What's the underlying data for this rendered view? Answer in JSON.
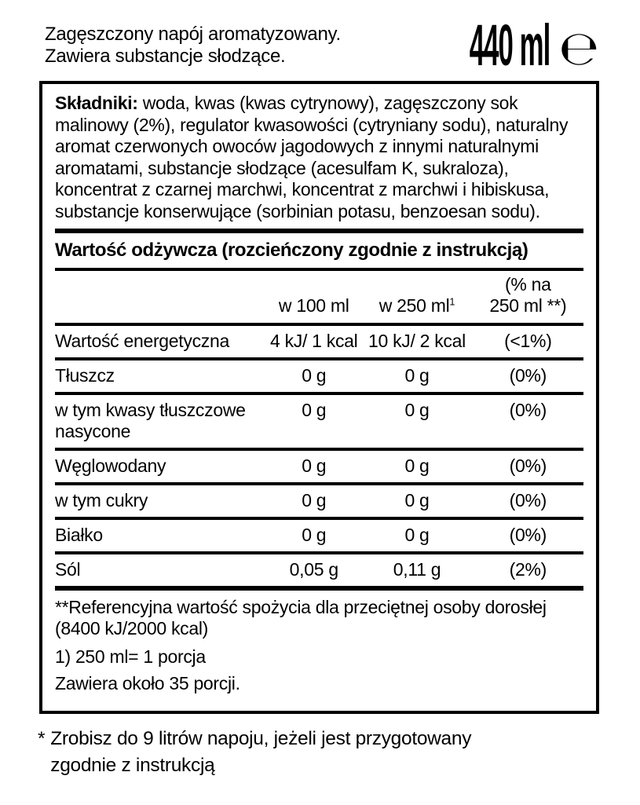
{
  "header": {
    "description_line1": "Zagęszczony napój aromatyzowany.",
    "description_line2": "Zawiera substancje słodzące.",
    "volume": "440 ml",
    "estimated_sign": "℮"
  },
  "ingredients": {
    "label": "Składniki:",
    "text": "woda, kwas (kwas cytrynowy), zagęszczony sok malinowy (2%), regulator kwasowości (cytryniany sodu), naturalny aromat czerwonych owoców jagodowych z innymi naturalnymi aromatami, substancje słodzące (acesulfam K, sukraloza), koncentrat z czarnej marchwi, koncentrat z marchwi i hibiskusa, substancje konserwujące (sorbinian potasu, benzoesan sodu)."
  },
  "nutrition": {
    "title": "Wartość odżywcza (rozcieńczony zgodnie z instrukcją)",
    "columns": {
      "per100": "w 100 ml",
      "per250": "w 250 ml",
      "per250_sup": "1",
      "percent_line1": "(% na",
      "percent_line2": "250 ml **)"
    },
    "rows": [
      {
        "label": "Wartość energetyczna",
        "per100": "4 kJ/ 1 kcal",
        "per250": "10 kJ/ 2 kcal",
        "percent": "(<1%)"
      },
      {
        "label": "Tłuszcz",
        "per100": "0 g",
        "per250": "0 g",
        "percent": "(0%)"
      },
      {
        "label": "w tym kwasy tłuszczowe nasycone",
        "per100": "0 g",
        "per250": "0 g",
        "percent": "(0%)"
      },
      {
        "label": "Węglowodany",
        "per100": "0 g",
        "per250": "0 g",
        "percent": "(0%)"
      },
      {
        "label": "w tym cukry",
        "per100": "0 g",
        "per250": "0 g",
        "percent": "(0%)"
      },
      {
        "label": "Białko",
        "per100": "0 g",
        "per250": "0 g",
        "percent": "(0%)"
      },
      {
        "label": "Sól",
        "per100": "0,05 g",
        "per250": "0,11 g",
        "percent": "(2%)"
      }
    ]
  },
  "footnotes": {
    "reference_line1": "**Referencyjna wartość spożycia dla przeciętnej osoby dorosłej",
    "reference_line2": "(8400 kJ/2000 kcal)",
    "portion": "1) 250 ml= 1 porcja",
    "portions_total": "Zawiera około 35 porcji."
  },
  "bottom_note": {
    "marker": "*",
    "line1": "Zrobisz do 9 litrów napoju, jeżeli jest przygotowany",
    "line2": "zgodnie z instrukcją"
  }
}
